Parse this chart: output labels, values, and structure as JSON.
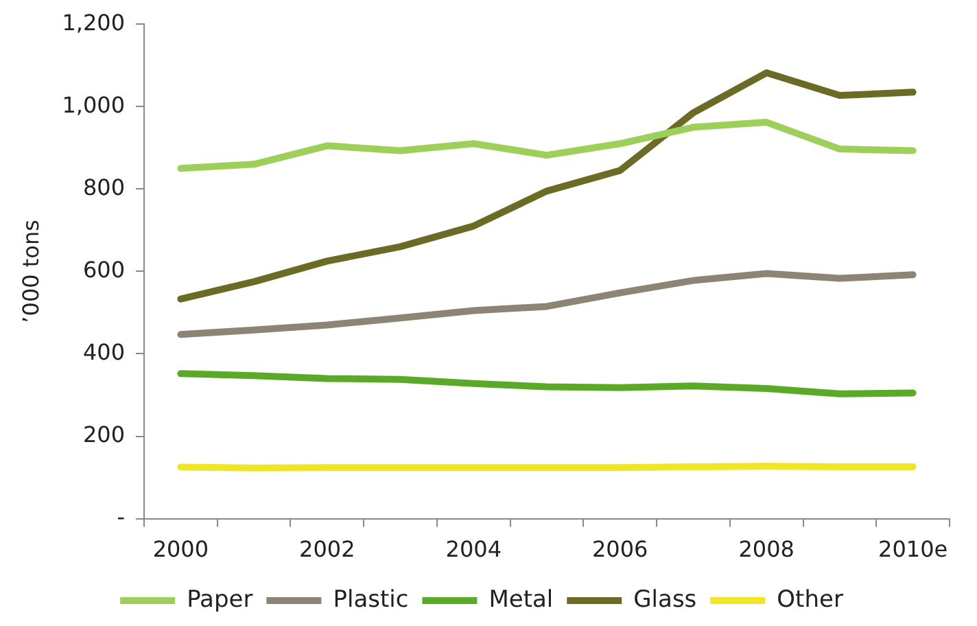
{
  "chart_data": {
    "type": "line",
    "ylabel": "’000 tons",
    "categories": [
      "2000",
      null,
      "2002",
      null,
      "2004",
      null,
      "2006",
      null,
      "2008",
      null,
      "2010e"
    ],
    "series": [
      {
        "name": "Paper",
        "color": "#9dcf5a",
        "values": [
          850,
          860,
          905,
          893,
          910,
          882,
          910,
          950,
          962,
          897,
          893
        ]
      },
      {
        "name": "Plastic",
        "color": "#8c8474",
        "values": [
          447,
          458,
          470,
          487,
          505,
          515,
          548,
          578,
          595,
          583,
          592
        ]
      },
      {
        "name": "Metal",
        "color": "#5aaa28",
        "values": [
          352,
          347,
          340,
          338,
          328,
          320,
          318,
          322,
          316,
          303,
          305
        ]
      },
      {
        "name": "Glass",
        "color": "#6b6b25",
        "values": [
          533,
          575,
          625,
          660,
          710,
          795,
          845,
          985,
          1082,
          1027,
          1035
        ]
      },
      {
        "name": "Other",
        "color": "#f0e628",
        "values": [
          125,
          123,
          124,
          124,
          124,
          124,
          124,
          126,
          127,
          126,
          126
        ]
      }
    ],
    "ylim": [
      0,
      1200
    ],
    "yticks": [
      {
        "value": 0,
        "label": "-"
      },
      200,
      400,
      600,
      800,
      {
        "value": 1000,
        "label": "1,000"
      },
      {
        "value": 1200,
        "label": "1,200"
      }
    ],
    "grid": false,
    "legend": "bottom",
    "marker": "none",
    "line_style": "solid"
  }
}
